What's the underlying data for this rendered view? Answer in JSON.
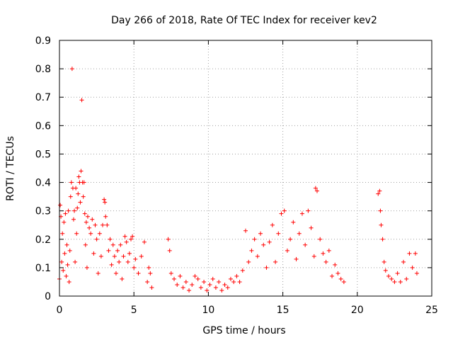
{
  "chart_data": {
    "type": "scatter",
    "title": "Day 266 of 2018, Rate Of TEC Index for receiver kev2",
    "xlabel": "GPS time / hours",
    "ylabel": "ROTI / TECUs",
    "xlim": [
      0,
      25
    ],
    "ylim": [
      0,
      0.9
    ],
    "x_ticks": [
      0,
      5,
      10,
      15,
      20,
      25
    ],
    "y_ticks": [
      0,
      0.1,
      0.2,
      0.3,
      0.4,
      0.5,
      0.6,
      0.7,
      0.8,
      0.9
    ],
    "x_tick_labels": [
      "0",
      "5",
      "10",
      "15",
      "20",
      "25"
    ],
    "y_tick_labels": [
      "0",
      "0.1",
      "0.2",
      "0.3",
      "0.4",
      "0.5",
      "0.6",
      "0.7",
      "0.8",
      "0.9"
    ],
    "grid": true,
    "marker": "plus",
    "series_color": "#ff0000",
    "series": [
      {
        "name": "ROTI kev2",
        "points": [
          [
            0.0,
            0.06
          ],
          [
            0.05,
            0.32
          ],
          [
            0.1,
            0.28
          ],
          [
            0.15,
            0.12
          ],
          [
            0.2,
            0.22
          ],
          [
            0.25,
            0.09
          ],
          [
            0.3,
            0.26
          ],
          [
            0.35,
            0.15
          ],
          [
            0.4,
            0.29
          ],
          [
            0.45,
            0.07
          ],
          [
            0.5,
            0.18
          ],
          [
            0.55,
            0.11
          ],
          [
            0.6,
            0.3
          ],
          [
            0.65,
            0.05
          ],
          [
            0.7,
            0.16
          ],
          [
            0.75,
            0.35
          ],
          [
            0.8,
            0.4
          ],
          [
            0.85,
            0.8
          ],
          [
            0.9,
            0.38
          ],
          [
            0.95,
            0.27
          ],
          [
            1.0,
            0.3
          ],
          [
            1.05,
            0.12
          ],
          [
            1.1,
            0.38
          ],
          [
            1.15,
            0.22
          ],
          [
            1.2,
            0.31
          ],
          [
            1.25,
            0.36
          ],
          [
            1.3,
            0.42
          ],
          [
            1.35,
            0.4
          ],
          [
            1.4,
            0.33
          ],
          [
            1.45,
            0.44
          ],
          [
            1.5,
            0.69
          ],
          [
            1.55,
            0.4
          ],
          [
            1.6,
            0.35
          ],
          [
            1.65,
            0.4
          ],
          [
            1.7,
            0.29
          ],
          [
            1.75,
            0.18
          ],
          [
            1.8,
            0.26
          ],
          [
            1.85,
            0.1
          ],
          [
            1.9,
            0.28
          ],
          [
            2.0,
            0.24
          ],
          [
            2.1,
            0.22
          ],
          [
            2.2,
            0.27
          ],
          [
            2.3,
            0.15
          ],
          [
            2.4,
            0.25
          ],
          [
            2.5,
            0.2
          ],
          [
            2.6,
            0.08
          ],
          [
            2.7,
            0.22
          ],
          [
            2.8,
            0.14
          ],
          [
            2.9,
            0.25
          ],
          [
            3.0,
            0.34
          ],
          [
            3.05,
            0.33
          ],
          [
            3.1,
            0.28
          ],
          [
            3.2,
            0.25
          ],
          [
            3.3,
            0.16
          ],
          [
            3.4,
            0.2
          ],
          [
            3.5,
            0.11
          ],
          [
            3.6,
            0.18
          ],
          [
            3.7,
            0.14
          ],
          [
            3.8,
            0.08
          ],
          [
            3.9,
            0.16
          ],
          [
            4.0,
            0.12
          ],
          [
            4.1,
            0.18
          ],
          [
            4.2,
            0.06
          ],
          [
            4.3,
            0.14
          ],
          [
            4.4,
            0.21
          ],
          [
            4.5,
            0.19
          ],
          [
            4.6,
            0.12
          ],
          [
            4.7,
            0.15
          ],
          [
            4.8,
            0.2
          ],
          [
            4.9,
            0.21
          ],
          [
            5.0,
            0.1
          ],
          [
            5.1,
            0.13
          ],
          [
            5.3,
            0.08
          ],
          [
            5.5,
            0.14
          ],
          [
            5.7,
            0.19
          ],
          [
            5.9,
            0.05
          ],
          [
            6.0,
            0.1
          ],
          [
            6.1,
            0.08
          ],
          [
            6.2,
            0.03
          ],
          [
            7.3,
            0.2
          ],
          [
            7.4,
            0.16
          ],
          [
            7.5,
            0.08
          ],
          [
            7.7,
            0.06
          ],
          [
            7.9,
            0.04
          ],
          [
            8.1,
            0.07
          ],
          [
            8.3,
            0.03
          ],
          [
            8.5,
            0.05
          ],
          [
            8.7,
            0.02
          ],
          [
            8.9,
            0.04
          ],
          [
            9.1,
            0.07
          ],
          [
            9.3,
            0.06
          ],
          [
            9.5,
            0.03
          ],
          [
            9.7,
            0.05
          ],
          [
            9.9,
            0.02
          ],
          [
            10.1,
            0.04
          ],
          [
            10.3,
            0.06
          ],
          [
            10.5,
            0.03
          ],
          [
            10.7,
            0.05
          ],
          [
            10.9,
            0.02
          ],
          [
            11.1,
            0.04
          ],
          [
            11.3,
            0.03
          ],
          [
            11.5,
            0.06
          ],
          [
            11.7,
            0.05
          ],
          [
            11.9,
            0.07
          ],
          [
            12.1,
            0.05
          ],
          [
            12.3,
            0.09
          ],
          [
            12.5,
            0.23
          ],
          [
            12.7,
            0.12
          ],
          [
            12.9,
            0.16
          ],
          [
            13.1,
            0.2
          ],
          [
            13.3,
            0.14
          ],
          [
            13.5,
            0.22
          ],
          [
            13.7,
            0.18
          ],
          [
            13.9,
            0.1
          ],
          [
            14.1,
            0.19
          ],
          [
            14.3,
            0.25
          ],
          [
            14.5,
            0.12
          ],
          [
            14.7,
            0.22
          ],
          [
            14.9,
            0.29
          ],
          [
            15.1,
            0.3
          ],
          [
            15.3,
            0.16
          ],
          [
            15.5,
            0.2
          ],
          [
            15.7,
            0.26
          ],
          [
            15.9,
            0.13
          ],
          [
            16.1,
            0.22
          ],
          [
            16.3,
            0.29
          ],
          [
            16.5,
            0.18
          ],
          [
            16.7,
            0.3
          ],
          [
            16.9,
            0.24
          ],
          [
            17.1,
            0.14
          ],
          [
            17.2,
            0.38
          ],
          [
            17.3,
            0.37
          ],
          [
            17.5,
            0.2
          ],
          [
            17.7,
            0.15
          ],
          [
            17.9,
            0.12
          ],
          [
            18.1,
            0.16
          ],
          [
            18.3,
            0.07
          ],
          [
            18.5,
            0.11
          ],
          [
            18.7,
            0.08
          ],
          [
            18.9,
            0.06
          ],
          [
            19.1,
            0.05
          ],
          [
            21.4,
            0.36
          ],
          [
            21.5,
            0.37
          ],
          [
            21.55,
            0.3
          ],
          [
            21.6,
            0.25
          ],
          [
            21.7,
            0.2
          ],
          [
            21.8,
            0.12
          ],
          [
            21.9,
            0.09
          ],
          [
            22.1,
            0.07
          ],
          [
            22.3,
            0.06
          ],
          [
            22.5,
            0.05
          ],
          [
            22.7,
            0.08
          ],
          [
            22.9,
            0.05
          ],
          [
            23.1,
            0.12
          ],
          [
            23.3,
            0.06
          ],
          [
            23.5,
            0.15
          ],
          [
            23.7,
            0.1
          ],
          [
            23.9,
            0.15
          ],
          [
            24.0,
            0.08
          ]
        ]
      }
    ]
  }
}
